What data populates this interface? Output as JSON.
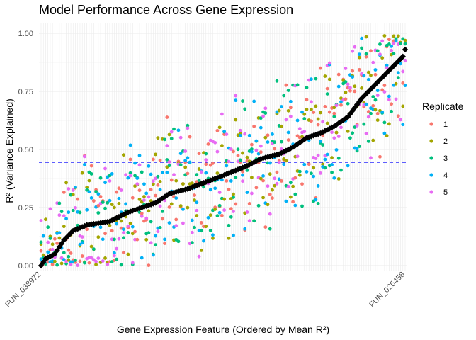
{
  "chart_data": {
    "type": "scatter",
    "title": "Model Performance Across Gene Expression",
    "xlabel": "Gene Expression Feature (Ordered by Mean R²)",
    "ylabel": "R² (Variance Explained)",
    "ylim": [
      0,
      1
    ],
    "y_ticks": [
      "0.00",
      "0.25",
      "0.50",
      "0.75",
      "1.00"
    ],
    "y_tick_values": [
      0,
      0.25,
      0.5,
      0.75,
      1.0
    ],
    "x_tick_first": "FUN_038972",
    "x_tick_last": "FUN_025458",
    "feature_count": 160,
    "reference_line": {
      "y": 0.445,
      "style": "dashed",
      "color": "#0000ff"
    },
    "mean_series": {
      "name": "Mean R²",
      "marker": "diamond",
      "color": "#000000",
      "knots": [
        [
          0,
          0.0
        ],
        [
          2,
          0.03
        ],
        [
          6,
          0.05
        ],
        [
          10,
          0.11
        ],
        [
          14,
          0.15
        ],
        [
          20,
          0.175
        ],
        [
          30,
          0.19
        ],
        [
          38,
          0.23
        ],
        [
          44,
          0.25
        ],
        [
          50,
          0.27
        ],
        [
          56,
          0.31
        ],
        [
          64,
          0.33
        ],
        [
          72,
          0.36
        ],
        [
          80,
          0.39
        ],
        [
          90,
          0.43
        ],
        [
          96,
          0.46
        ],
        [
          104,
          0.48
        ],
        [
          110,
          0.51
        ],
        [
          116,
          0.55
        ],
        [
          122,
          0.57
        ],
        [
          128,
          0.6
        ],
        [
          134,
          0.64
        ],
        [
          140,
          0.72
        ],
        [
          146,
          0.78
        ],
        [
          150,
          0.82
        ],
        [
          154,
          0.86
        ],
        [
          158,
          0.9
        ],
        [
          160,
          0.96
        ]
      ]
    },
    "legend": {
      "title": "Replicate",
      "position": "right",
      "items": [
        {
          "label": "1",
          "color": "#F8766D"
        },
        {
          "label": "2",
          "color": "#A3A500"
        },
        {
          "label": "3",
          "color": "#00BF7D"
        },
        {
          "label": "4",
          "color": "#00B0F6"
        },
        {
          "label": "5",
          "color": "#E76BF3"
        }
      ]
    },
    "replicate_spread": 0.35,
    "grid": true
  }
}
